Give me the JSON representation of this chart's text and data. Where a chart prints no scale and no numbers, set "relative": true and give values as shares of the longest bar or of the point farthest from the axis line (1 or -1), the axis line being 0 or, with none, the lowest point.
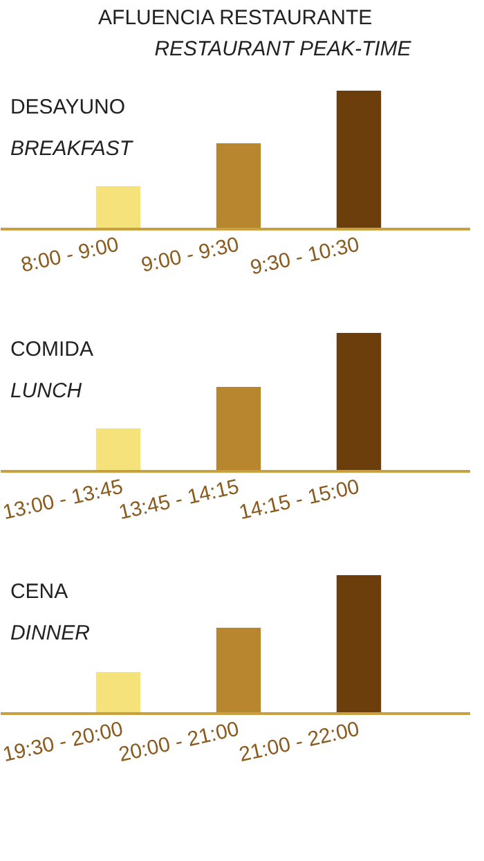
{
  "chart_data": [
    {
      "type": "other",
      "title": "AFLUENCIA RESTAURANTE",
      "subtitle": "RESTAURANT PEAK-TIME"
    },
    {
      "type": "bar",
      "title": "DESAYUNO",
      "subtitle": "BREAKFAST",
      "relative": true,
      "categories": [
        "8:00 - 9:00",
        "9:00 - 9:30",
        "9:30 - 10:30"
      ],
      "values": [
        0.31,
        0.62,
        1
      ],
      "colors": [
        "#f6e27a",
        "#b8862e",
        "#6b3e0c"
      ]
    },
    {
      "type": "bar",
      "title": "COMIDA",
      "subtitle": "LUNCH",
      "relative": true,
      "categories": [
        "13:00 - 13:45",
        "13:45 - 14:15",
        "14:15 - 15:00"
      ],
      "values": [
        0.31,
        0.61,
        1
      ],
      "colors": [
        "#f6e27a",
        "#b8862e",
        "#6b3e0c"
      ]
    },
    {
      "type": "bar",
      "title": "CENA",
      "subtitle": "DINNER",
      "relative": true,
      "categories": [
        "19:30 - 20:00",
        "20:00 - 21:00",
        "21:00 - 22:00"
      ],
      "values": [
        0.3,
        0.62,
        1
      ],
      "colors": [
        "#f6e27a",
        "#b8862e",
        "#6b3e0c"
      ]
    }
  ]
}
